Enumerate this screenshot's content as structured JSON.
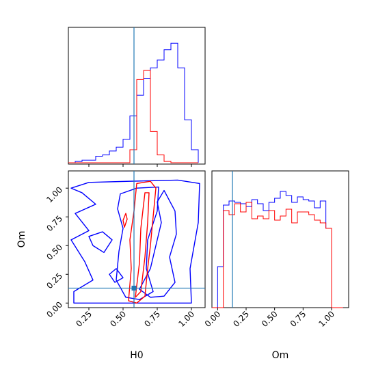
{
  "chart_data": {
    "type": "corner",
    "parameters": [
      "H0",
      "Om"
    ],
    "truths": {
      "H0": 0.58,
      "Om": 0.13
    },
    "colors": {
      "blue_series": "#0000ff",
      "red_series": "#ff0000",
      "truth_line": "#1f77b4"
    },
    "hist_H0": {
      "xlim": [
        0.1,
        1.1
      ],
      "x_ticks": [
        0.25,
        0.5,
        0.75,
        1.0
      ],
      "bins": [
        0.1,
        0.15,
        0.2,
        0.25,
        0.3,
        0.35,
        0.4,
        0.45,
        0.5,
        0.55,
        0.6,
        0.65,
        0.7,
        0.75,
        0.8,
        0.85,
        0.9,
        0.95,
        1.0,
        1.05
      ],
      "blue": [
        0.0,
        0.01,
        0.02,
        0.02,
        0.05,
        0.06,
        0.09,
        0.12,
        0.18,
        0.36,
        0.52,
        0.65,
        0.73,
        0.79,
        0.87,
        0.92,
        0.73,
        0.33,
        0.1,
        0.0
      ],
      "red": [
        0.0,
        0.0,
        0.0,
        0.0,
        0.0,
        0.0,
        0.0,
        0.0,
        0.0,
        0.1,
        0.64,
        0.71,
        0.24,
        0.06,
        0.01,
        0.0,
        0.0,
        0.0,
        0.0,
        0.0
      ]
    },
    "hist_Om": {
      "xlim": [
        -0.05,
        1.15
      ],
      "x_ticks": [
        0.0,
        0.25,
        0.5,
        0.75,
        1.0
      ],
      "x_tick_labels": [
        "0.00",
        "0.25",
        "0.50",
        "0.75",
        "1.00"
      ],
      "bins": [
        -0.05,
        0.0,
        0.05,
        0.1,
        0.15,
        0.2,
        0.25,
        0.3,
        0.35,
        0.4,
        0.45,
        0.5,
        0.55,
        0.6,
        0.65,
        0.7,
        0.75,
        0.8,
        0.85,
        0.9,
        0.95,
        1.0,
        1.05,
        1.1
      ],
      "blue": [
        0.0,
        0.3,
        0.75,
        0.78,
        0.77,
        0.76,
        0.74,
        0.79,
        0.76,
        0.71,
        0.77,
        0.8,
        0.85,
        0.82,
        0.77,
        0.81,
        0.79,
        0.78,
        0.73,
        0.78,
        0.58,
        0.0,
        0.0
      ],
      "red": [
        0.0,
        0.0,
        0.71,
        0.68,
        0.76,
        0.7,
        0.77,
        0.65,
        0.67,
        0.65,
        0.71,
        0.64,
        0.67,
        0.72,
        0.62,
        0.7,
        0.7,
        0.68,
        0.64,
        0.62,
        0.58,
        0.0,
        0.0
      ]
    },
    "scatter_H0_Om": {
      "xlim": [
        0.1,
        1.1
      ],
      "ylim": [
        -0.04,
        1.15
      ],
      "x_ticks": [
        0.25,
        0.5,
        0.75,
        1.0
      ],
      "y_ticks": [
        0.0,
        0.25,
        0.5,
        0.75,
        1.0
      ],
      "x_tick_labels": [
        "0.25",
        "0.50",
        "0.75",
        "1.00"
      ],
      "y_tick_labels": [
        "0.00",
        "0.25",
        "0.50",
        "0.75",
        "1.00"
      ],
      "blue_contours": [
        [
          [
            0.12,
            1.0
          ],
          [
            0.25,
            1.05
          ],
          [
            0.55,
            1.06
          ],
          [
            0.9,
            1.07
          ],
          [
            1.06,
            1.04
          ],
          [
            1.05,
            0.7
          ],
          [
            0.99,
            0.3
          ],
          [
            1.0,
            0.0
          ],
          [
            0.85,
            0.0
          ],
          [
            0.4,
            0.0
          ],
          [
            0.14,
            0.0
          ],
          [
            0.14,
            0.1
          ],
          [
            0.28,
            0.2
          ],
          [
            0.22,
            0.36
          ],
          [
            0.12,
            0.55
          ],
          [
            0.25,
            0.63
          ],
          [
            0.15,
            0.78
          ],
          [
            0.3,
            0.86
          ],
          [
            0.2,
            0.96
          ],
          [
            0.12,
            1.0
          ]
        ],
        [
          [
            0.48,
            0.95
          ],
          [
            0.6,
            1.0
          ],
          [
            0.76,
            1.01
          ],
          [
            0.75,
            0.8
          ],
          [
            0.68,
            0.55
          ],
          [
            0.67,
            0.3
          ],
          [
            0.72,
            0.1
          ],
          [
            0.62,
            0.03
          ],
          [
            0.52,
            0.05
          ],
          [
            0.45,
            0.2
          ],
          [
            0.47,
            0.45
          ],
          [
            0.5,
            0.65
          ],
          [
            0.46,
            0.82
          ],
          [
            0.48,
            0.95
          ]
        ],
        [
          [
            0.8,
            0.98
          ],
          [
            0.88,
            0.8
          ],
          [
            0.89,
            0.6
          ],
          [
            0.84,
            0.4
          ],
          [
            0.88,
            0.18
          ],
          [
            0.8,
            0.06
          ],
          [
            0.7,
            0.05
          ],
          [
            0.62,
            0.12
          ],
          [
            0.7,
            0.3
          ],
          [
            0.74,
            0.5
          ],
          [
            0.78,
            0.7
          ],
          [
            0.75,
            0.88
          ],
          [
            0.8,
            0.98
          ]
        ],
        [
          [
            0.25,
            0.58
          ],
          [
            0.35,
            0.62
          ],
          [
            0.42,
            0.55
          ],
          [
            0.36,
            0.44
          ],
          [
            0.28,
            0.5
          ],
          [
            0.25,
            0.58
          ]
        ],
        [
          [
            0.4,
            0.25
          ],
          [
            0.45,
            0.3
          ],
          [
            0.5,
            0.22
          ],
          [
            0.44,
            0.18
          ],
          [
            0.4,
            0.25
          ]
        ]
      ],
      "red_contours": [
        [
          [
            0.54,
            0.02
          ],
          [
            0.56,
            0.3
          ],
          [
            0.55,
            0.55
          ],
          [
            0.58,
            0.8
          ],
          [
            0.6,
            1.04
          ],
          [
            0.7,
            1.06
          ],
          [
            0.74,
            1.0
          ],
          [
            0.72,
            0.75
          ],
          [
            0.7,
            0.5
          ],
          [
            0.68,
            0.3
          ],
          [
            0.66,
            0.06
          ],
          [
            0.6,
            0.0
          ],
          [
            0.54,
            0.02
          ]
        ],
        [
          [
            0.59,
            0.05
          ],
          [
            0.62,
            0.35
          ],
          [
            0.63,
            0.65
          ],
          [
            0.66,
            0.96
          ],
          [
            0.69,
            0.96
          ],
          [
            0.68,
            0.7
          ],
          [
            0.66,
            0.4
          ],
          [
            0.63,
            0.1
          ],
          [
            0.59,
            0.05
          ]
        ],
        [
          [
            0.5,
            0.72
          ],
          [
            0.52,
            0.78
          ],
          [
            0.53,
            0.73
          ],
          [
            0.51,
            0.66
          ],
          [
            0.5,
            0.72
          ]
        ]
      ]
    },
    "xlabels": {
      "H0": "H0",
      "Om": "Om"
    },
    "ylabels": {
      "Om": "Om"
    }
  }
}
